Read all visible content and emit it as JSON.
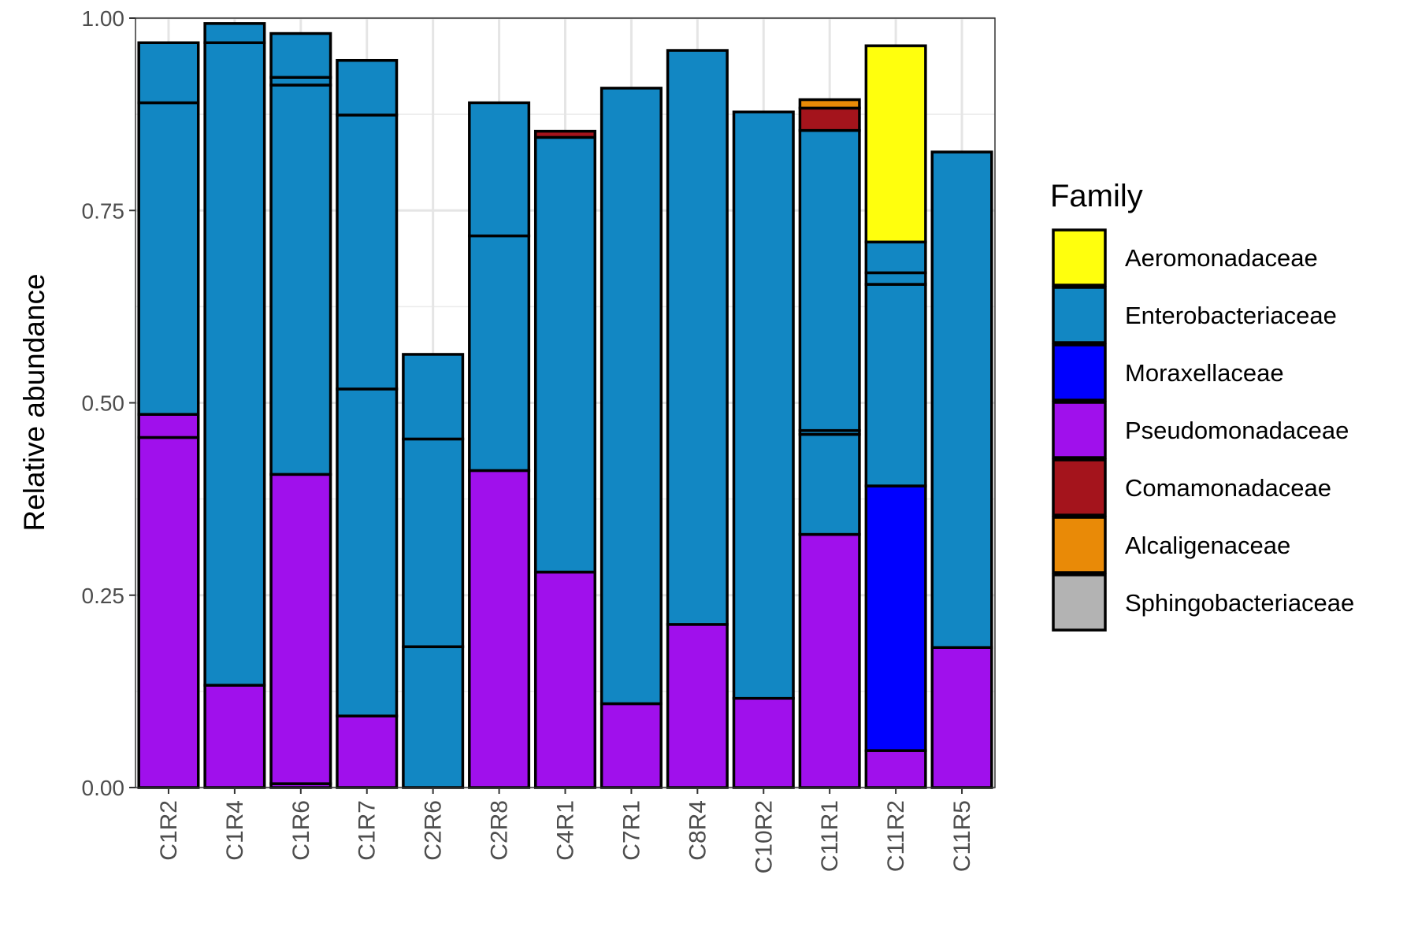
{
  "chart_data": {
    "type": "bar",
    "stacked": true,
    "ylabel": "Relative abundance",
    "xlabel": "",
    "ylim": [
      0,
      1
    ],
    "yticks": [
      "0.00",
      "0.25",
      "0.50",
      "0.75",
      "1.00"
    ],
    "ytick_values": [
      0,
      0.25,
      0.5,
      0.75,
      1.0
    ],
    "grid": true,
    "legend_position": "right",
    "legend": {
      "title": "Family",
      "items": [
        {
          "name": "Aeromonadaceae",
          "color": "#FFFF0D"
        },
        {
          "name": "Enterobacteriaceae",
          "color": "#1287C3"
        },
        {
          "name": "Moraxellaceae",
          "color": "#0000FF"
        },
        {
          "name": "Pseudomonadaceae",
          "color": "#A010EC"
        },
        {
          "name": "Comamonadaceae",
          "color": "#A4141C"
        },
        {
          "name": "Alcaligenaceae",
          "color": "#E98A07"
        },
        {
          "name": "Sphingobacteriaceae",
          "color": "#B3B3B3"
        }
      ]
    },
    "categories": [
      "C1R2",
      "C1R4",
      "C1R6",
      "C1R7",
      "C2R6",
      "C2R8",
      "C4R1",
      "C7R1",
      "C8R4",
      "C10R2",
      "C11R1",
      "C11R2",
      "C11R5"
    ],
    "bars": [
      {
        "label": "C1R2",
        "segments": [
          {
            "family": "Pseudomonadaceae",
            "value": 0.455
          },
          {
            "family": "Pseudomonadaceae",
            "value": 0.03
          },
          {
            "family": "Enterobacteriaceae",
            "value": 0.405
          },
          {
            "family": "Enterobacteriaceae",
            "value": 0.078
          }
        ]
      },
      {
        "label": "C1R4",
        "segments": [
          {
            "family": "Pseudomonadaceae",
            "value": 0.133
          },
          {
            "family": "Enterobacteriaceae",
            "value": 0.835
          },
          {
            "family": "Enterobacteriaceae",
            "value": 0.025
          }
        ]
      },
      {
        "label": "C1R6",
        "segments": [
          {
            "family": "Pseudomonadaceae",
            "value": 0.005
          },
          {
            "family": "Pseudomonadaceae",
            "value": 0.402
          },
          {
            "family": "Enterobacteriaceae",
            "value": 0.506
          },
          {
            "family": "Enterobacteriaceae",
            "value": 0.01
          },
          {
            "family": "Enterobacteriaceae",
            "value": 0.057
          }
        ]
      },
      {
        "label": "C1R7",
        "segments": [
          {
            "family": "Pseudomonadaceae",
            "value": 0.093
          },
          {
            "family": "Enterobacteriaceae",
            "value": 0.425
          },
          {
            "family": "Enterobacteriaceae",
            "value": 0.356
          },
          {
            "family": "Enterobacteriaceae",
            "value": 0.071
          }
        ]
      },
      {
        "label": "C2R6",
        "segments": [
          {
            "family": "Enterobacteriaceae",
            "value": 0.183
          },
          {
            "family": "Enterobacteriaceae",
            "value": 0.27
          },
          {
            "family": "Enterobacteriaceae",
            "value": 0.11
          }
        ]
      },
      {
        "label": "C2R8",
        "segments": [
          {
            "family": "Pseudomonadaceae",
            "value": 0.412
          },
          {
            "family": "Enterobacteriaceae",
            "value": 0.305
          },
          {
            "family": "Enterobacteriaceae",
            "value": 0.173
          }
        ]
      },
      {
        "label": "C4R1",
        "segments": [
          {
            "family": "Pseudomonadaceae",
            "value": 0.28
          },
          {
            "family": "Enterobacteriaceae",
            "value": 0.565
          },
          {
            "family": "Comamonadaceae",
            "value": 0.008
          }
        ]
      },
      {
        "label": "C7R1",
        "segments": [
          {
            "family": "Pseudomonadaceae",
            "value": 0.109
          },
          {
            "family": "Enterobacteriaceae",
            "value": 0.8
          }
        ]
      },
      {
        "label": "C8R4",
        "segments": [
          {
            "family": "Pseudomonadaceae",
            "value": 0.212
          },
          {
            "family": "Enterobacteriaceae",
            "value": 0.746
          }
        ]
      },
      {
        "label": "C10R2",
        "segments": [
          {
            "family": "Pseudomonadaceae",
            "value": 0.116
          },
          {
            "family": "Enterobacteriaceae",
            "value": 0.762
          }
        ]
      },
      {
        "label": "C11R1",
        "segments": [
          {
            "family": "Pseudomonadaceae",
            "value": 0.329
          },
          {
            "family": "Enterobacteriaceae",
            "value": 0.13
          },
          {
            "family": "Enterobacteriaceae",
            "value": 0.005
          },
          {
            "family": "Enterobacteriaceae",
            "value": 0.39
          },
          {
            "family": "Comamonadaceae",
            "value": 0.029
          },
          {
            "family": "Alcaligenaceae",
            "value": 0.011
          }
        ]
      },
      {
        "label": "C11R2",
        "segments": [
          {
            "family": "Pseudomonadaceae",
            "value": 0.048
          },
          {
            "family": "Moraxellaceae",
            "value": 0.344
          },
          {
            "family": "Enterobacteriaceae",
            "value": 0.262
          },
          {
            "family": "Enterobacteriaceae",
            "value": 0.015
          },
          {
            "family": "Enterobacteriaceae",
            "value": 0.04
          },
          {
            "family": "Aeromonadaceae",
            "value": 0.255
          }
        ]
      },
      {
        "label": "C11R5",
        "segments": [
          {
            "family": "Pseudomonadaceae",
            "value": 0.182
          },
          {
            "family": "Enterobacteriaceae",
            "value": 0.644
          }
        ]
      }
    ]
  }
}
